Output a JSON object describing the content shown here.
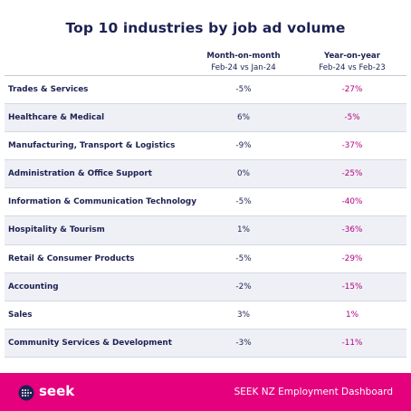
{
  "chart_data": {
    "type": "table",
    "title": "Top 10 industries by job ad volume",
    "columns": [
      {
        "heading": "Month-on-month",
        "subheading": "Feb-24 vs Jan-24"
      },
      {
        "heading": "Year-on-year",
        "subheading": "Feb-24 vs Feb-23"
      }
    ],
    "rows": [
      {
        "industry": "Trades & Services",
        "mom": "-5%",
        "yoy": "-27%"
      },
      {
        "industry": "Healthcare & Medical",
        "mom": "6%",
        "yoy": "-5%"
      },
      {
        "industry": "Manufacturing, Transport & Logistics",
        "mom": "-9%",
        "yoy": "-37%"
      },
      {
        "industry": "Administration & Office Support",
        "mom": "0%",
        "yoy": "-25%"
      },
      {
        "industry": "Information & Communication Technology",
        "mom": "-5%",
        "yoy": "-40%"
      },
      {
        "industry": "Hospitality & Tourism",
        "mom": "1%",
        "yoy": "-36%"
      },
      {
        "industry": "Retail & Consumer Products",
        "mom": "-5%",
        "yoy": "-29%"
      },
      {
        "industry": "Accounting",
        "mom": "-2%",
        "yoy": "-15%"
      },
      {
        "industry": "Sales",
        "mom": "3%",
        "yoy": "1%"
      },
      {
        "industry": "Community Services & Development",
        "mom": "-3%",
        "yoy": "-11%"
      }
    ]
  },
  "footer": {
    "logo_text": "seek",
    "title": "SEEK NZ Employment Dashboard"
  },
  "colors": {
    "navy": "#1c2151",
    "magenta": "#e5007e",
    "yoy_text": "#b5007e",
    "alt_row": "#eef0f6"
  },
  "icons": {
    "logo": "seek-logo-icon"
  }
}
